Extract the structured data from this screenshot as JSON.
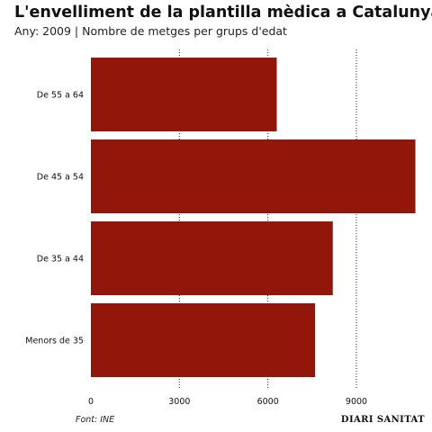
{
  "header": {
    "title": "L'envelliment de la plantilla mèdica a Catalunya",
    "subtitle": "Any: 2009 | Nombre de metges per grups d'edat"
  },
  "footer": {
    "source": "Font: INE",
    "brand": "DIARI SANITAT"
  },
  "colors": {
    "bar": "#93160b",
    "grid": "#222222"
  },
  "chart_data": {
    "type": "bar",
    "orientation": "horizontal",
    "title": "L'envelliment de la plantilla mèdica a Catalunya",
    "subtitle": "Any: 2009 | Nombre de metges per grups d'edat",
    "categories": [
      "De 55 a 64",
      "De 45 a 54",
      "De 35 a 44",
      "Menors de 35"
    ],
    "values": [
      6300,
      11000,
      8200,
      7600
    ],
    "xlim": [
      0,
      11500
    ],
    "xticks": [
      0,
      3000,
      6000,
      9000
    ],
    "xtick_labels": [
      "0",
      "3000",
      "6000",
      "9000"
    ],
    "grid": "vertical dotted",
    "legend": "none"
  }
}
